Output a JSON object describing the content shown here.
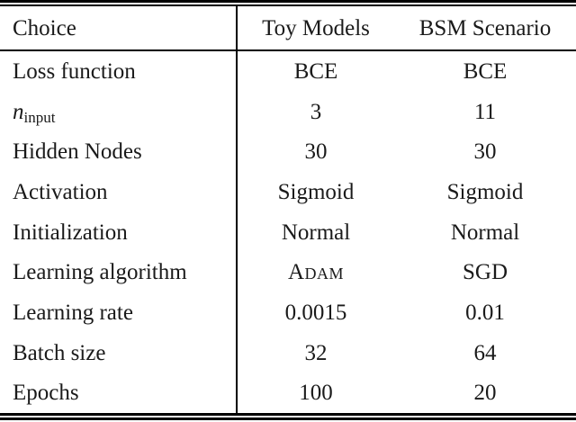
{
  "table": {
    "header": {
      "choice": "Choice",
      "toy": "Toy Models",
      "bsm": "BSM Scenario"
    },
    "rows": [
      {
        "label": "Loss function",
        "toy": "BCE",
        "bsm": "BCE"
      },
      {
        "label_main": "n",
        "label_sub": "input",
        "toy": "3",
        "bsm": "11"
      },
      {
        "label": "Hidden Nodes",
        "toy": "30",
        "bsm": "30"
      },
      {
        "label": "Activation",
        "toy": "Sigmoid",
        "bsm": "Sigmoid"
      },
      {
        "label": "Initialization",
        "toy": "Normal",
        "bsm": "Normal"
      },
      {
        "label": "Learning algorithm",
        "toy": "Adam",
        "bsm": "SGD"
      },
      {
        "label": "Learning rate",
        "toy": "0.0015",
        "bsm": "0.01"
      },
      {
        "label": "Batch size",
        "toy": "32",
        "bsm": "64"
      },
      {
        "label": "Epochs",
        "toy": "100",
        "bsm": "20"
      }
    ]
  },
  "colors": {
    "rule": "#000000",
    "text": "#1a1a1a",
    "background": "#ffffff"
  }
}
